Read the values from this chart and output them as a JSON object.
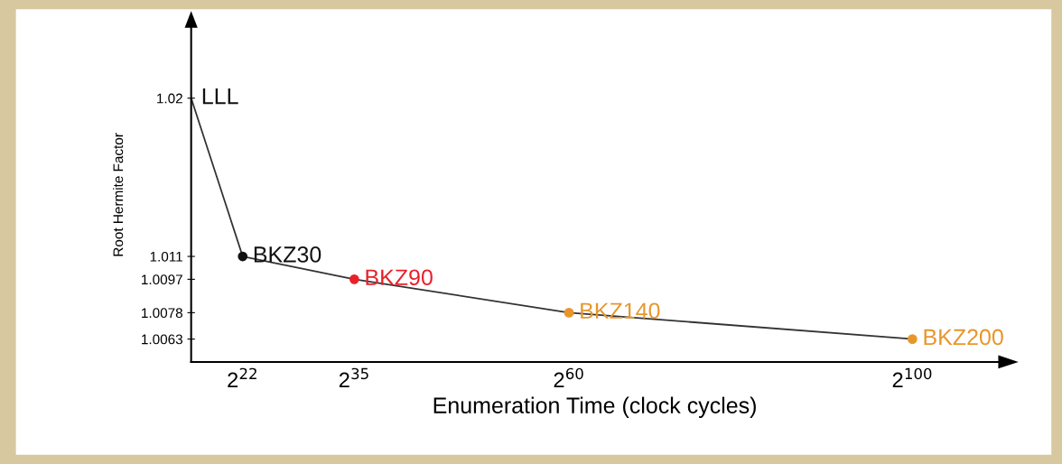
{
  "chart_data": {
    "type": "line",
    "xlabel": "Enumeration Time (clock cycles)",
    "ylabel": "Root Hermite Factor",
    "log": "x",
    "xlim": [
      65536,
      1.298074214633707e+33
    ],
    "ylim": [
      1.005,
      1.024
    ],
    "xticks": [
      {
        "value": 4194304,
        "label": "2$^{22}$"
      },
      {
        "value": 34359738368,
        "label": "2$^{35}$"
      },
      {
        "value": 1152921504606846976,
        "label": "2$^{60}$"
      },
      {
        "value": 1.2676506002282294e+30,
        "label": "2$^{100}$"
      }
    ],
    "yticks": [
      1.0063,
      1.0078,
      1.0097,
      1.011,
      1.02
    ],
    "grid": false,
    "series": [
      {
        "type": "line",
        "color": "#333333",
        "line_style": "solid",
        "x": [
          65536,
          4194304,
          34359738368,
          1152921504606846976,
          1.2676506002282294e+30
        ],
        "values": [
          1.02,
          1.011,
          1.0097,
          1.0078,
          1.0063
        ]
      },
      {
        "type": "scatter",
        "marker": "circle",
        "x": [
          4194304,
          34359738368,
          1152921504606846976,
          1.2676506002282294e+30
        ],
        "values": [
          1.011,
          1.0097,
          1.0078,
          1.0063
        ],
        "colors": [
          "#111111",
          "#e8202a",
          "#e8962a",
          "#e8962a"
        ]
      }
    ],
    "annotations": [
      {
        "text": "LLL",
        "x": 65536,
        "y": 1.02
      },
      {
        "text": "BKZ30",
        "x": 4194304,
        "y": 1.011
      },
      {
        "text": "BKZ90",
        "x": 34359738368,
        "y": 1.0097
      },
      {
        "text": "BKZ140",
        "x": 1152921504606846976,
        "y": 1.0078
      },
      {
        "text": "BKZ200",
        "x": 1.2676506002282294e+30,
        "y": 1.0063
      }
    ]
  }
}
